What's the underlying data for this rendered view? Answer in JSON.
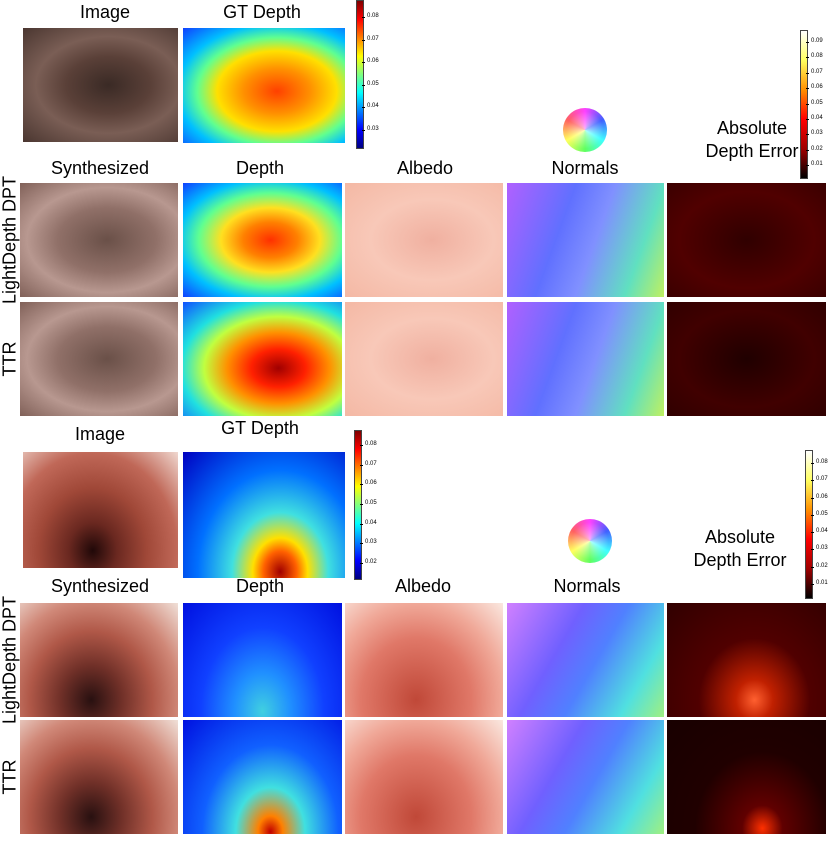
{
  "panels": [
    {
      "image_label": "Image",
      "gt_label": "GT Depth",
      "gt_colorbar_ticks": [
        0.08,
        0.07,
        0.06,
        0.05,
        0.04,
        0.03
      ],
      "columns": [
        "Synthesized",
        "Depth",
        "Albedo",
        "Normals"
      ],
      "error_label": "Absolute Depth Error",
      "error_colorbar_ticks": [
        0.09,
        0.08,
        0.07,
        0.06,
        0.05,
        0.04,
        0.03,
        0.02,
        0.01
      ],
      "rows": [
        "LightDepth DPT",
        "TTR"
      ]
    },
    {
      "image_label": "Image",
      "gt_label": "GT Depth",
      "gt_colorbar_ticks": [
        0.08,
        0.07,
        0.06,
        0.05,
        0.04,
        0.03,
        0.02
      ],
      "columns": [
        "Synthesized",
        "Depth",
        "Albedo",
        "Normals"
      ],
      "error_label": "Absolute Depth Error",
      "error_colorbar_ticks": [
        0.08,
        0.07,
        0.06,
        0.05,
        0.04,
        0.03,
        0.02,
        0.01
      ],
      "rows": [
        "LightDepth DPT",
        "TTR"
      ]
    }
  ]
}
